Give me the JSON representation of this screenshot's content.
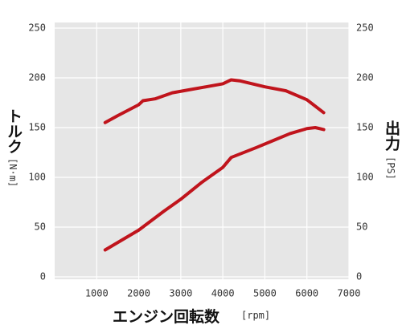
{
  "chart_data": {
    "type": "line",
    "x_label": "エンジン回転数",
    "x_unit": "[rpm]",
    "y_label": "トルク",
    "y_unit": "[N·m]",
    "y2_label": "出力",
    "y2_unit": "[PS]",
    "xlim": [
      0,
      7000
    ],
    "xticks": [
      1000,
      2000,
      3000,
      4000,
      5000,
      6000,
      7000
    ],
    "ylim": [
      0,
      250
    ],
    "yticks": [
      0,
      50,
      100,
      150,
      200,
      250
    ],
    "y2lim": [
      0,
      250
    ],
    "y2ticks": [
      0,
      50,
      100,
      150,
      200,
      250
    ],
    "grid": true,
    "series": [
      {
        "color": "#c0141c",
        "x": [
          1200,
          1500,
          2000,
          2100,
          2400,
          2800,
          3200,
          3600,
          4000,
          4200,
          4400,
          5000,
          5500,
          6000,
          6400
        ],
        "values": [
          155,
          162,
          173,
          177,
          179,
          185,
          188,
          191,
          194,
          198,
          197,
          191,
          187,
          178,
          165
        ]
      },
      {
        "color": "#c0141c",
        "axis": "y2",
        "x": [
          1200,
          1600,
          2000,
          2600,
          3000,
          3500,
          4000,
          4200,
          4800,
          5200,
          5600,
          6000,
          6200,
          6400
        ],
        "values": [
          27,
          37,
          47,
          66,
          78,
          95,
          110,
          120,
          130,
          137,
          144,
          149,
          150,
          148
        ]
      }
    ]
  }
}
